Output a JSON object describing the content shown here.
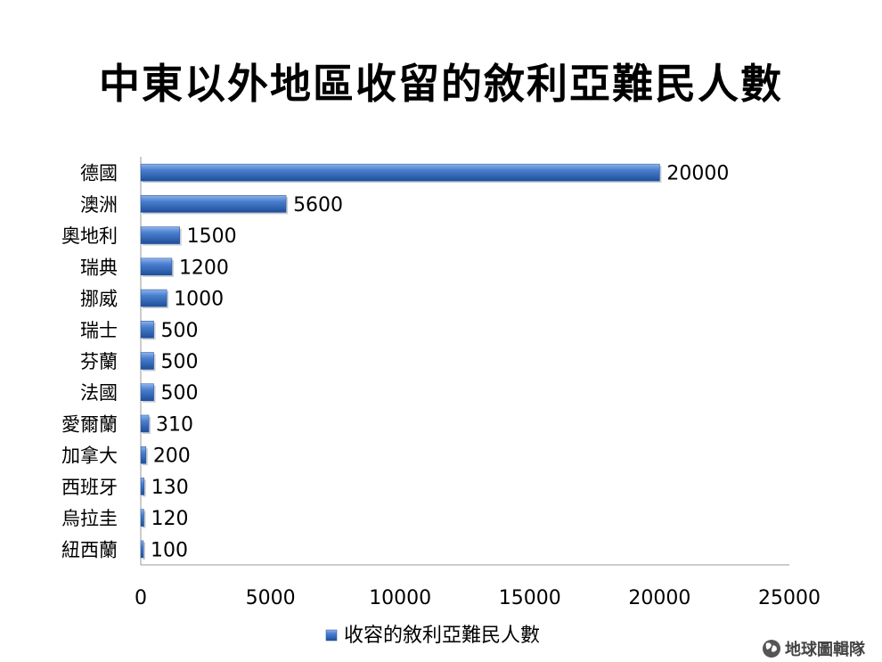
{
  "chart_data": {
    "type": "bar",
    "orientation": "horizontal",
    "title": "中東以外地區收留的敘利亞難民人數",
    "categories": [
      "德國",
      "澳洲",
      "奧地利",
      "瑞典",
      "挪威",
      "瑞士",
      "芬蘭",
      "法國",
      "愛爾蘭",
      "加拿大",
      "西班牙",
      "烏拉圭",
      "紐西蘭"
    ],
    "series": [
      {
        "name": "收容的敘利亞難民人數",
        "values": [
          20000,
          5600,
          1500,
          1200,
          1000,
          500,
          500,
          500,
          310,
          200,
          130,
          120,
          100
        ],
        "color": "#3a6fc4"
      }
    ],
    "xlim": [
      0,
      25000
    ],
    "xticks": [
      0,
      5000,
      10000,
      15000,
      20000,
      25000
    ],
    "grid": false,
    "legend": "bottom",
    "data_labels": true
  },
  "watermark": {
    "text": "地球圖輯隊",
    "icon": "globe-icon"
  }
}
